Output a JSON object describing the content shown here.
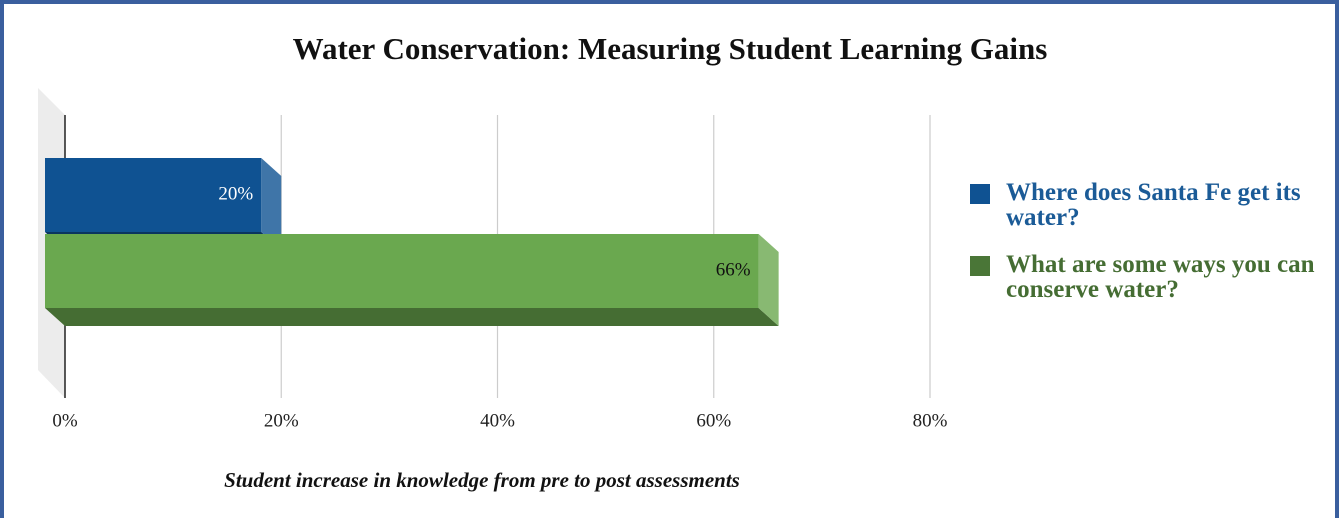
{
  "chart_data": {
    "type": "bar",
    "orientation": "horizontal",
    "title": "Water Conservation: Measuring Student Learning Gains",
    "x_label": "Student increase in knowledge from pre to post assessments",
    "categories": [
      null
    ],
    "series": [
      {
        "name": "Where does Santa Fe get its water?",
        "color": "#0f5292",
        "values": [
          20
        ],
        "value_labels": [
          "20%"
        ]
      },
      {
        "name": "What are some ways you can conserve water?",
        "color": "#6aa84f",
        "values": [
          66
        ],
        "value_labels": [
          "66%"
        ]
      }
    ],
    "xlim": [
      0,
      80
    ],
    "xticks": [
      {
        "value": 0,
        "label": "0%"
      },
      {
        "value": 20,
        "label": "20%"
      },
      {
        "value": 40,
        "label": "40%"
      },
      {
        "value": 60,
        "label": "60%"
      },
      {
        "value": 80,
        "label": "80%"
      }
    ],
    "grid": true,
    "legend": "right"
  }
}
